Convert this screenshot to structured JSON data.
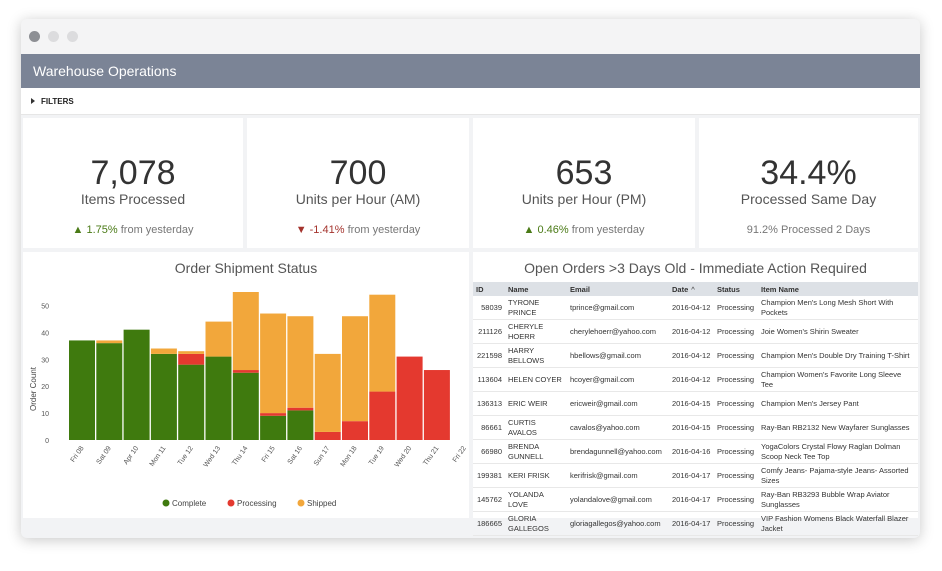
{
  "app": {
    "title": "Warehouse Operations",
    "filters_label": "FILTERS"
  },
  "kpis": [
    {
      "value": "7,078",
      "label": "Items Processed",
      "change": "1.75%",
      "direction": "up",
      "suffix": "from yesterday"
    },
    {
      "value": "700",
      "label": "Units per Hour (AM)",
      "change": "-1.41%",
      "direction": "down",
      "suffix": "from yesterday"
    },
    {
      "value": "653",
      "label": "Units per Hour (PM)",
      "change": "0.46%",
      "direction": "up",
      "suffix": "from yesterday"
    },
    {
      "value": "34.4%",
      "label": "Processed Same Day",
      "change": "91.2%",
      "direction": "none",
      "suffix": "Processed 2 Days"
    }
  ],
  "colors": {
    "complete": "#3f7a0e",
    "processing": "#e4392f",
    "shipped": "#f2a73b",
    "header": "#7b8496",
    "up": "#4a7a16",
    "down": "#a4332d"
  },
  "chart_data": {
    "type": "bar",
    "stacked": true,
    "title": "Order Shipment Status",
    "ylabel": "Order Count",
    "xlabel": "",
    "ylim": [
      0,
      55
    ],
    "yticks": [
      0,
      10,
      20,
      30,
      40,
      50
    ],
    "categories": [
      "Fri 08",
      "Sat 09",
      "Apr 10",
      "Mon 11",
      "Tue 12",
      "Wed 13",
      "Thu 14",
      "Fri 15",
      "Sat 16",
      "Sun 17",
      "Mon 18",
      "Tue 19",
      "Wed 20",
      "Thu 21",
      "Fri 22"
    ],
    "series": [
      {
        "name": "Complete",
        "color": "#3f7a0e",
        "values": [
          37,
          36,
          41,
          32,
          28,
          31,
          25,
          9,
          11,
          0,
          0,
          0,
          0,
          0,
          0
        ]
      },
      {
        "name": "Processing",
        "color": "#e4392f",
        "values": [
          0,
          0,
          0,
          0,
          4,
          0,
          1,
          1,
          1,
          3,
          7,
          18,
          31,
          26,
          0
        ]
      },
      {
        "name": "Shipped",
        "color": "#f2a73b",
        "values": [
          0,
          1,
          0,
          2,
          1,
          13,
          29,
          37,
          34,
          29,
          39,
          36,
          0,
          0,
          0
        ]
      }
    ],
    "legend_position": "bottom",
    "grid": false
  },
  "orders": {
    "title": "Open Orders >3 Days Old - Immediate Action Required",
    "columns": [
      "ID",
      "Name",
      "Email",
      "Date",
      "Status",
      "Item Name"
    ],
    "rows": [
      [
        "58039",
        "TYRONE PRINCE",
        "tprince@gmail.com",
        "2016-04-12",
        "Processing",
        "Champion Men's Long Mesh Short With Pockets"
      ],
      [
        "211126",
        "CHERYLE HOERR",
        "cherylehoerr@yahoo.com",
        "2016-04-12",
        "Processing",
        "Joie Women's Shirin Sweater"
      ],
      [
        "221598",
        "HARRY BELLOWS",
        "hbellows@gmail.com",
        "2016-04-12",
        "Processing",
        "Champion Men's Double Dry Training T-Shirt"
      ],
      [
        "113604",
        "HELEN COYER",
        "hcoyer@gmail.com",
        "2016-04-12",
        "Processing",
        "Champion Women's Favorite Long Sleeve Tee"
      ],
      [
        "136313",
        "ERIC WEIR",
        "ericweir@gmail.com",
        "2016-04-15",
        "Processing",
        "Champion Men's Jersey Pant"
      ],
      [
        "86661",
        "CURTIS AVALOS",
        "cavalos@yahoo.com",
        "2016-04-15",
        "Processing",
        "Ray-Ban RB2132 New Wayfarer Sunglasses"
      ],
      [
        "66980",
        "BRENDA GUNNELL",
        "brendagunnell@yahoo.com",
        "2016-04-16",
        "Processing",
        "YogaColors Crystal Flowy Raglan Dolman Scoop Neck Tee Top"
      ],
      [
        "199381",
        "KERI FRISK",
        "kerifrisk@gmail.com",
        "2016-04-17",
        "Processing",
        "Comfy Jeans- Pajama-style Jeans- Assorted Sizes"
      ],
      [
        "145762",
        "YOLANDA LOVE",
        "yolandalove@gmail.com",
        "2016-04-17",
        "Processing",
        "Ray-Ban RB3293 Bubble Wrap Aviator Sunglasses"
      ],
      [
        "186665",
        "GLORIA GALLEGOS",
        "gloriagallegos@yahoo.com",
        "2016-04-17",
        "Processing",
        "VIP Fashion Womens Black Waterfall Blazer Jacket"
      ]
    ]
  }
}
